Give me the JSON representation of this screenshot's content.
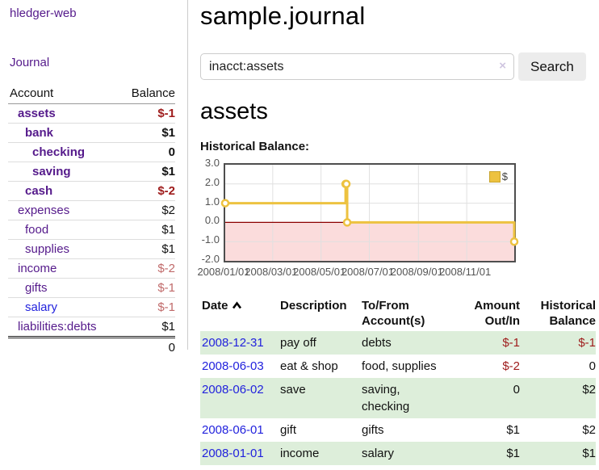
{
  "colors": {
    "link_purple": "#551A8B",
    "link_blue": "#2222DD",
    "negative_dark": "#9E1B1B",
    "negative_light": "#C06A6A",
    "row_stripe_green": "#DDEEDA",
    "chart_line_gold": "#EDC240",
    "chart_negative_fill": "#FBDCDC",
    "chart_zero_line": "#8B0000",
    "chart_grid": "#E0E0E0"
  },
  "sidebar": {
    "brand": "hledger-web",
    "nav": {
      "journal": "Journal"
    },
    "table": {
      "account_header": "Account",
      "balance_header": "Balance"
    },
    "accounts": [
      {
        "name": "assets",
        "balance": "$-1"
      },
      {
        "name": "bank",
        "balance": "$1"
      },
      {
        "name": "checking",
        "balance": "0"
      },
      {
        "name": "saving",
        "balance": "$1"
      },
      {
        "name": "cash",
        "balance": "$-2"
      },
      {
        "name": "expenses",
        "balance": "$2"
      },
      {
        "name": "food",
        "balance": "$1"
      },
      {
        "name": "supplies",
        "balance": "$1"
      },
      {
        "name": "income",
        "balance": "$-2"
      },
      {
        "name": "gifts",
        "balance": "$-1"
      },
      {
        "name": "salary",
        "balance": "$-1"
      },
      {
        "name": "liabilities:debts",
        "balance": "$1"
      }
    ],
    "total": "0"
  },
  "main": {
    "title": "sample.journal",
    "search": {
      "query": "inacct:assets",
      "clear_label": "×",
      "search_button": "Search",
      "help_button": "?"
    },
    "account_heading": "assets",
    "section_label": "Historical Balance:"
  },
  "chart_data": {
    "type": "line",
    "title": "Historical Balance",
    "step": true,
    "grid": true,
    "negative_region_shaded": true,
    "x_range": [
      "2008-01-01",
      "2008-12-31"
    ],
    "y_range": [
      -2,
      3
    ],
    "yticks": [
      "3.0",
      "2.0",
      "1.0",
      "0.0",
      "-1.0",
      "-2.0"
    ],
    "ytick_values": [
      3,
      2,
      1,
      0,
      -1,
      -2
    ],
    "xticks": [
      "2008/01/01",
      "2008/03/01",
      "2008/05/01",
      "2008/07/01",
      "2008/09/01",
      "2008/11/01"
    ],
    "xtick_dates": [
      "2008-01-01",
      "2008-03-01",
      "2008-05-01",
      "2008-07-01",
      "2008-09-01",
      "2008-11-01"
    ],
    "legend": {
      "label": "$",
      "position": "top-right"
    },
    "series": [
      {
        "name": "$",
        "color": "#EDC240",
        "points": [
          {
            "date": "2008-01-01",
            "value": 1
          },
          {
            "date": "2008-06-01",
            "value": 2
          },
          {
            "date": "2008-06-02",
            "value": 2
          },
          {
            "date": "2008-06-03",
            "value": 0
          },
          {
            "date": "2008-12-31",
            "value": -1
          }
        ]
      }
    ]
  },
  "register": {
    "headers": {
      "date": "Date",
      "description": "Description",
      "tofrom": "To/From Account(s)",
      "amount": "Amount Out/In",
      "balance": "Historical Balance"
    },
    "sort": {
      "column": "date",
      "direction": "ascending"
    },
    "rows": [
      {
        "date": "2008-12-31",
        "description": "pay off",
        "accounts": "debts",
        "amount": "$-1",
        "balance": "$-1"
      },
      {
        "date": "2008-06-03",
        "description": "eat & shop",
        "accounts": "food, supplies",
        "amount": "$-2",
        "balance": "0"
      },
      {
        "date": "2008-06-02",
        "description": "save",
        "accounts": "saving, checking",
        "amount": "0",
        "balance": "$2"
      },
      {
        "date": "2008-06-01",
        "description": "gift",
        "accounts": "gifts",
        "amount": "$1",
        "balance": "$2"
      },
      {
        "date": "2008-01-01",
        "description": "income",
        "accounts": "salary",
        "amount": "$1",
        "balance": "$1"
      }
    ]
  }
}
